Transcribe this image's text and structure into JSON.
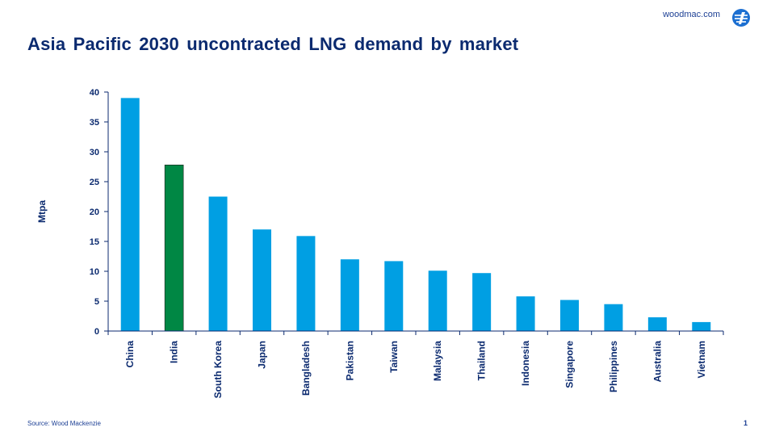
{
  "header": {
    "brand": "woodmac.com",
    "logo_icon": "woodmac-logo-icon",
    "title": "Asia Pacific 2030 uncontracted LNG demand by market"
  },
  "footer": {
    "source": "Source: Wood Mackenzie",
    "page_number": "1"
  },
  "colors": {
    "bar": "#009fe3",
    "highlight": "#008744",
    "text": "#0b2a6f"
  },
  "chart_data": {
    "type": "bar",
    "title": "Asia Pacific 2030 uncontracted LNG demand by market",
    "xlabel": "",
    "ylabel": "Mtpa",
    "ylim": [
      0,
      40
    ],
    "yticks": [
      0,
      5,
      10,
      15,
      20,
      25,
      30,
      35,
      40
    ],
    "categories": [
      "China",
      "India",
      "South Korea",
      "Japan",
      "Bangladesh",
      "Pakistan",
      "Taiwan",
      "Malaysia",
      "Thailand",
      "Indonesia",
      "Singapore",
      "Philippines",
      "Australia",
      "Vietnam"
    ],
    "values": [
      39,
      27.8,
      22.5,
      17,
      15.9,
      12,
      11.7,
      10.1,
      9.7,
      5.8,
      5.2,
      4.5,
      2.3,
      1.5
    ],
    "highlight_category": "India",
    "grid": false,
    "legend": "none"
  }
}
